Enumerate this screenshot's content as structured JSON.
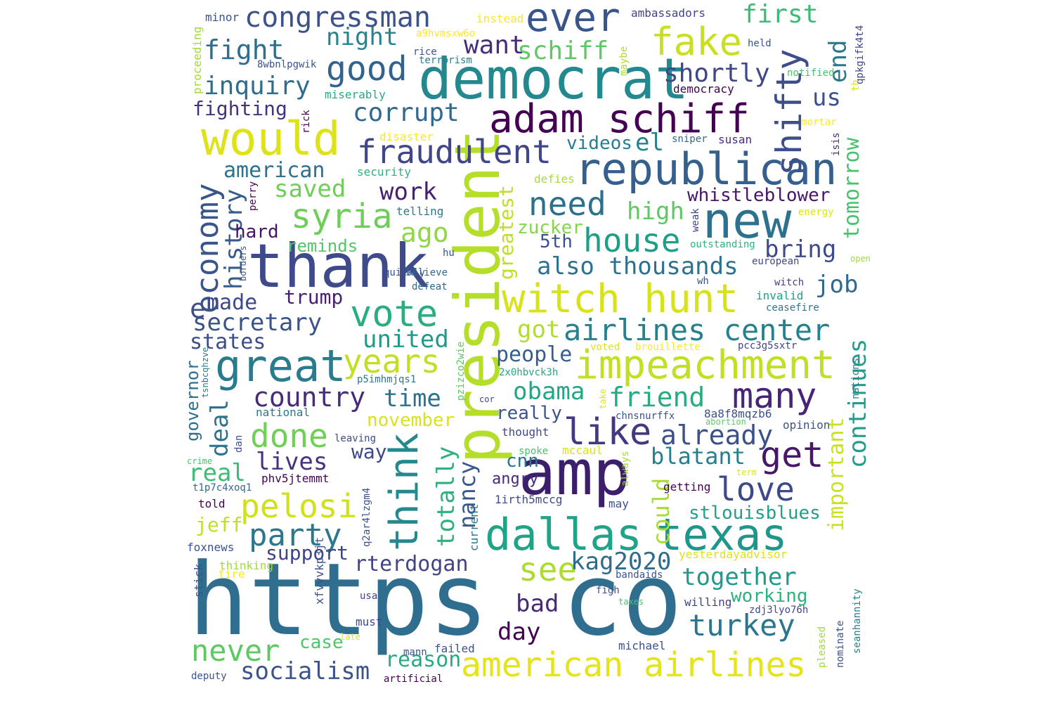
{
  "words": [
    {
      "text": "https",
      "color": "#2f6e8e"
    },
    {
      "text": "co",
      "color": "#2f6e8e"
    },
    {
      "text": "democrat",
      "color": "#23898e"
    },
    {
      "text": "president",
      "color": "#b5de2b"
    },
    {
      "text": "thank",
      "color": "#3e4a89"
    },
    {
      "text": "amp",
      "color": "#3b1f6b"
    },
    {
      "text": "republican",
      "color": "#355f8d"
    },
    {
      "text": "adam schiff",
      "color": "#440154"
    },
    {
      "text": "witch hunt",
      "color": "#d8e219"
    },
    {
      "text": "would",
      "color": "#dde318"
    },
    {
      "text": "new",
      "color": "#2c728e"
    },
    {
      "text": "great",
      "color": "#287c8e"
    },
    {
      "text": "impeachment",
      "color": "#c2df23"
    },
    {
      "text": "dallas",
      "color": "#20a386"
    },
    {
      "text": "texas",
      "color": "#1f968b"
    },
    {
      "text": "american airlines",
      "color": "#e5e419"
    },
    {
      "text": "vote",
      "color": "#29af7f"
    },
    {
      "text": "like",
      "color": "#453781"
    },
    {
      "text": "fake",
      "color": "#c8e020"
    },
    {
      "text": "congressman",
      "color": "#3b528b"
    },
    {
      "text": "ever",
      "color": "#39568c"
    },
    {
      "text": "fraudulent",
      "color": "#404688"
    },
    {
      "text": "shifty",
      "color": "#3d4e8a"
    },
    {
      "text": "airlines center",
      "color": "#26818e"
    },
    {
      "text": "many",
      "color": "#482475"
    },
    {
      "text": "years",
      "color": "#c0df25"
    },
    {
      "text": "think",
      "color": "#23898e"
    },
    {
      "text": "good",
      "color": "#33628d"
    },
    {
      "text": "syria",
      "color": "#6ece58"
    },
    {
      "text": "economy",
      "color": "#3a548c"
    },
    {
      "text": "pelosi",
      "color": "#d0e11c"
    },
    {
      "text": "party",
      "color": "#2a788e"
    },
    {
      "text": "done",
      "color": "#70cf57"
    },
    {
      "text": "house",
      "color": "#1f9f88"
    },
    {
      "text": "need",
      "color": "#2d708e"
    },
    {
      "text": "get",
      "color": "#481769"
    },
    {
      "text": "love",
      "color": "#3e4989"
    },
    {
      "text": "see",
      "color": "#addc30"
    },
    {
      "text": "turkey",
      "color": "#2a768e"
    },
    {
      "text": "never",
      "color": "#5ec962"
    },
    {
      "text": "country",
      "color": "#472c7a"
    },
    {
      "text": "history",
      "color": "#365c8d"
    },
    {
      "text": "fight",
      "color": "#2e6e8e"
    },
    {
      "text": "inquiry",
      "color": "#2f6c8e"
    },
    {
      "text": "corrupt",
      "color": "#31688e"
    },
    {
      "text": "night",
      "color": "#25848e"
    },
    {
      "text": "want",
      "color": "#472d7b"
    },
    {
      "text": "schiff",
      "color": "#5ec962"
    },
    {
      "text": "first",
      "color": "#3bbb75"
    },
    {
      "text": "end",
      "color": "#2a788e"
    },
    {
      "text": "shortly",
      "color": "#3f4788"
    },
    {
      "text": "us",
      "color": "#3c508b"
    },
    {
      "text": "american",
      "color": "#2c718e"
    },
    {
      "text": "saved",
      "color": "#6ece58"
    },
    {
      "text": "work",
      "color": "#482071"
    },
    {
      "text": "ago",
      "color": "#8fd744"
    },
    {
      "text": "high",
      "color": "#5ec962"
    },
    {
      "text": "whistleblower",
      "color": "#481668"
    },
    {
      "text": "tomorrow",
      "color": "#4ac16d"
    },
    {
      "text": "el",
      "color": "#25838e"
    },
    {
      "text": "greatest",
      "color": "#bddf26"
    },
    {
      "text": "also thousands",
      "color": "#2d718e"
    },
    {
      "text": "bring",
      "color": "#3e4a89"
    },
    {
      "text": "job",
      "color": "#31688e"
    },
    {
      "text": "secretary",
      "color": "#3a538b"
    },
    {
      "text": "states",
      "color": "#3d4d8a"
    },
    {
      "text": "united",
      "color": "#1f9a8a"
    },
    {
      "text": "deal",
      "color": "#2c738e"
    },
    {
      "text": "time",
      "color": "#2d708e"
    },
    {
      "text": "obama",
      "color": "#22a785"
    },
    {
      "text": "friend",
      "color": "#25ac82"
    },
    {
      "text": "continues",
      "color": "#1f9e89"
    },
    {
      "text": "already",
      "color": "#3b518b"
    },
    {
      "text": "blatant",
      "color": "#277f8e"
    },
    {
      "text": "lives",
      "color": "#46327e"
    },
    {
      "text": "real",
      "color": "#3dbc74"
    },
    {
      "text": "nancy",
      "color": "#38588c"
    },
    {
      "text": "totally",
      "color": "#2db27d"
    },
    {
      "text": "could",
      "color": "#a8db34"
    },
    {
      "text": "important",
      "color": "#cae11f"
    },
    {
      "text": "kag2020",
      "color": "#2f6b8e"
    },
    {
      "text": "together",
      "color": "#1f9a8a"
    },
    {
      "text": "rterdogan",
      "color": "#414487"
    },
    {
      "text": "bad",
      "color": "#482878"
    },
    {
      "text": "day",
      "color": "#440154"
    },
    {
      "text": "socialism",
      "color": "#3b528b"
    },
    {
      "text": "reason",
      "color": "#25ab82"
    },
    {
      "text": "working",
      "color": "#2db27d"
    },
    {
      "text": "made",
      "color": "#3f4889"
    },
    {
      "text": "trump",
      "color": "#482173"
    },
    {
      "text": "hard",
      "color": "#471365"
    },
    {
      "text": "reminds",
      "color": "#52c569"
    },
    {
      "text": "fighting",
      "color": "#46337e"
    },
    {
      "text": "videos",
      "color": "#287d8e"
    },
    {
      "text": "zucker",
      "color": "#85d54a"
    },
    {
      "text": "5th",
      "color": "#3b518b"
    },
    {
      "text": "got",
      "color": "#b0dd2f"
    },
    {
      "text": "people",
      "color": "#355e8d"
    },
    {
      "text": "really",
      "color": "#3a548c"
    },
    {
      "text": "november",
      "color": "#dae319"
    },
    {
      "text": "way",
      "color": "#3e4989"
    },
    {
      "text": "cnn",
      "color": "#2b758e"
    },
    {
      "text": "angry",
      "color": "#472a7a"
    },
    {
      "text": "support",
      "color": "#414487"
    },
    {
      "text": "case",
      "color": "#52c569"
    },
    {
      "text": "governor",
      "color": "#2d708e"
    },
    {
      "text": "jeff",
      "color": "#c2df23"
    },
    {
      "text": "stlouisblues",
      "color": "#1fa088"
    },
    {
      "text": "e",
      "color": "#3d4e8a"
    }
  ],
  "small_words": [
    "minor",
    "instead",
    "ambassadors",
    "a9hvmsxw6o",
    "held",
    "qpkgifk4t4",
    "8wbnlpgwik",
    "rice",
    "proceeding",
    "terrorism",
    "notified",
    "miserably",
    "democracy",
    "maybe",
    "rick",
    "disaster",
    "mortar",
    "sniper",
    "susan",
    "isis",
    "security",
    "defies",
    "perry",
    "telling",
    "energy",
    "weak",
    "outstanding",
    "hu",
    "european",
    "open",
    "borders",
    "believe",
    "quickly",
    "defeat",
    "wh",
    "witch",
    "invalid",
    "ceasefire",
    "voted",
    "brouillette",
    "pcc3g5sxtr",
    "nations",
    "tsnbcqhzve",
    "2x0hbvck3h",
    "p5imhmjqs1",
    "pzizco2wie",
    "cor",
    "take",
    "chnsnurffx",
    "8a8f8mqzb6",
    "national",
    "abortion",
    "opinion",
    "thought",
    "leaving",
    "dan",
    "spoke",
    "mccaul",
    "crime",
    "phv5jtemmt",
    "always",
    "term",
    "t1p7c4xoq1",
    "getting",
    "1irth5mccg",
    "q2ar4lzgm4",
    "current",
    "told",
    "may",
    "foxnews",
    "yesterdayadvisor",
    "xfvvvkp3jt",
    "thinking",
    "stick",
    "fire",
    "bandaids",
    "willing",
    "taxes",
    "figh",
    "zdj3lyo76h",
    "usa",
    "seanhannity",
    "must",
    "pleased",
    "nominate",
    "late",
    "mann",
    "failed",
    "michael",
    "deputy",
    "artificial",
    "th",
    "democracy"
  ]
}
